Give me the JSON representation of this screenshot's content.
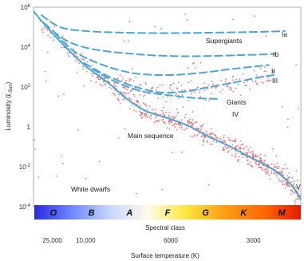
{
  "chart_data": {
    "type": "scatter",
    "title": "",
    "ylabel": "Luminosity (L_Sun)",
    "ylabel_parts": {
      "main": "Luminosity (",
      "symbol": "L",
      "sub": "Sun",
      "end": ")"
    },
    "xlabel_spectral": "Spectral class",
    "xlabel_temperature": "Surface temperature (K)",
    "y_scale": "log",
    "ylim": [
      0.0001,
      1000000
    ],
    "y_ticks": [
      {
        "value": 1000000,
        "base": "10",
        "exp": "6"
      },
      {
        "value": 10000,
        "base": "10",
        "exp": "4"
      },
      {
        "value": 100,
        "base": "10",
        "exp": "2"
      },
      {
        "value": 1,
        "base": "1",
        "exp": ""
      },
      {
        "value": 0.01,
        "base": "10",
        "exp": "-2"
      },
      {
        "value": 0.0001,
        "base": "10",
        "exp": "-4"
      }
    ],
    "spectral_classes": [
      "O",
      "B",
      "A",
      "F",
      "G",
      "K",
      "M"
    ],
    "temperature_ticks": [
      "25,000",
      "10,000",
      "6000",
      "3000"
    ],
    "temperature_tick_positions": [
      0.07,
      0.195,
      0.513,
      0.823
    ],
    "spectral_bar_colors": [
      "#2a2ae0",
      "#6f88ff",
      "#c9d8ff",
      "#fffbe8",
      "#ffe63a",
      "#ff9d14",
      "#ff6a00",
      "#e61a00"
    ],
    "curve_color": "#4aa6d8",
    "point_color": "#e05050",
    "sequences": [
      {
        "name": "Main sequence",
        "x": [
          0.0,
          0.05,
          0.12,
          0.2,
          0.28,
          0.35,
          0.42,
          0.5,
          0.58,
          0.65,
          0.73,
          0.8,
          0.86,
          0.92,
          0.97,
          1.0
        ],
        "y": [
          5.8,
          5.0,
          4.0,
          3.0,
          2.2,
          1.4,
          0.8,
          0.45,
          0.05,
          -0.45,
          -0.95,
          -1.45,
          -1.85,
          -2.35,
          -3.0,
          -3.65
        ]
      },
      {
        "name": "Ia",
        "style": "dashed",
        "x": [
          0.03,
          0.1,
          0.2,
          0.35,
          0.5,
          0.65,
          0.8,
          0.94
        ],
        "y": [
          5.6,
          5.0,
          4.8,
          4.72,
          4.7,
          4.72,
          4.75,
          4.8
        ]
      },
      {
        "name": "Ib",
        "style": "dashed",
        "x": [
          0.04,
          0.12,
          0.22,
          0.38,
          0.52,
          0.65,
          0.78,
          0.9
        ],
        "y": [
          5.2,
          4.35,
          3.9,
          3.65,
          3.55,
          3.55,
          3.6,
          3.65
        ]
      },
      {
        "name": "II",
        "style": "dashed",
        "x": [
          0.08,
          0.15,
          0.25,
          0.37,
          0.5,
          0.62,
          0.74,
          0.88
        ],
        "y": [
          4.7,
          3.8,
          3.15,
          2.7,
          2.6,
          2.7,
          2.9,
          3.1
        ]
      },
      {
        "name": "III",
        "style": "dashed",
        "x": [
          0.19,
          0.27,
          0.36,
          0.46,
          0.55,
          0.64,
          0.74,
          0.85,
          0.9
        ],
        "y": [
          3.2,
          2.6,
          2.1,
          1.75,
          1.75,
          1.95,
          2.2,
          2.5,
          2.6
        ]
      },
      {
        "name": "IV",
        "style": "dashed",
        "x": [
          0.22,
          0.3,
          0.4,
          0.5,
          0.6,
          0.7
        ],
        "y": [
          2.9,
          2.3,
          1.8,
          1.6,
          1.45,
          1.4
        ]
      }
    ],
    "annotations": [
      "Supergiants",
      "Giants",
      "Main sequence",
      "White dwarfs"
    ],
    "luminosity_class_labels": [
      "Ia",
      "Ib",
      "II",
      "III",
      "IV",
      "V"
    ]
  }
}
